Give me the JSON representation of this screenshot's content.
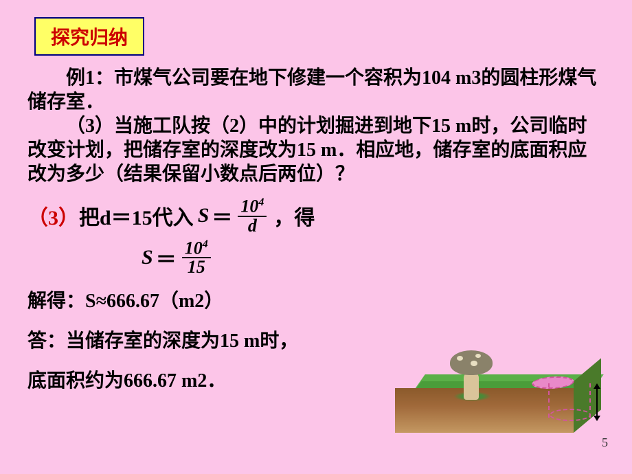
{
  "title": "探究归纳",
  "problem": {
    "line1_prefix": "例1：",
    "line1": "市煤气公司要在地下修建一个容积为",
    "line2": "104 m3的圆柱形煤气储存室．",
    "line3_prefix": "（3）",
    "line3": "当施工队按（2）中的计划掘进到地下",
    "line4": "15 m时，公司临时改变计划，把储存室的深度改为15 m．相应地，储存室的底面积应改为多少（结果保留小数点后两位）？"
  },
  "solution": {
    "step1_prefix": "（3）",
    "step1_a": "把d＝15代入",
    "step1_b": "，得",
    "formula1": {
      "var": "S",
      "eq": "＝",
      "num_base": "10",
      "num_exp": "4",
      "den": "d"
    },
    "formula2": {
      "var": "S",
      "eq": "＝",
      "num_base": "10",
      "num_exp": "4",
      "den": "15"
    },
    "result": "解得：S≈666.67（m2）",
    "answer1": "答：当储存室的深度为15 m时，",
    "answer2": "底面积约为666.67 m2．"
  },
  "page_number": "5",
  "colors": {
    "background": "#fcc5e8",
    "title_bg": "#ffff66",
    "title_border": "#000080",
    "title_text": "#cc0000",
    "body_text": "#000000",
    "accent_red": "#cc0000"
  }
}
